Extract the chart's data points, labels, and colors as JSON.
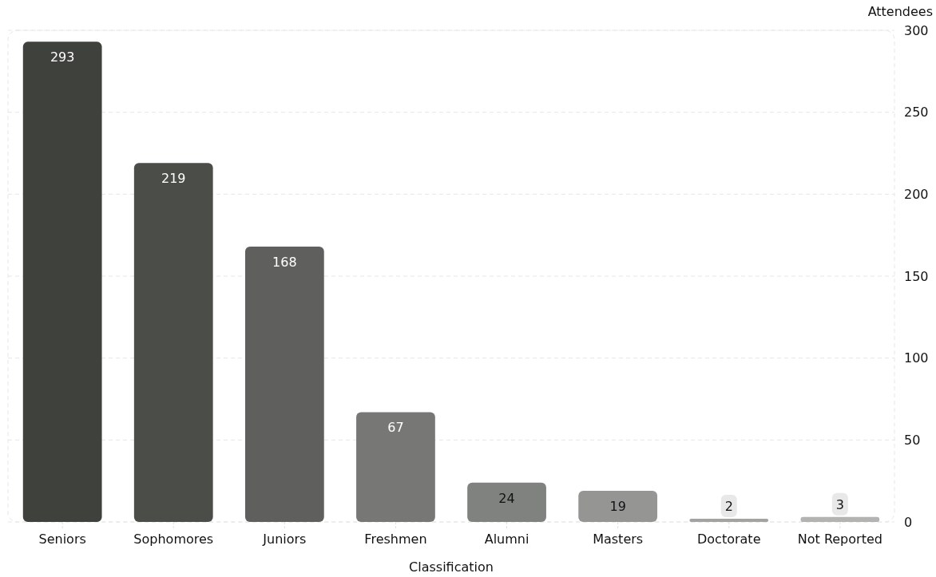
{
  "chart_data": {
    "type": "bar",
    "xlabel": "Classification",
    "ylabel": "Attendees",
    "categories": [
      "Seniors",
      "Sophomores",
      "Juniors",
      "Freshmen",
      "Alumni",
      "Masters",
      "Doctorate",
      "Not Reported"
    ],
    "values": [
      293,
      219,
      168,
      67,
      24,
      19,
      2,
      3
    ],
    "colors": [
      "#3f413d",
      "#4b4d49",
      "#5f605e",
      "#777876",
      "#80827f",
      "#959694",
      "#a3a4a2",
      "#b3b4b2"
    ],
    "ylim": [
      0,
      300
    ],
    "yticks": [
      0,
      50,
      100,
      150,
      200,
      250,
      300
    ],
    "grid": "y",
    "data_labels": true
  }
}
